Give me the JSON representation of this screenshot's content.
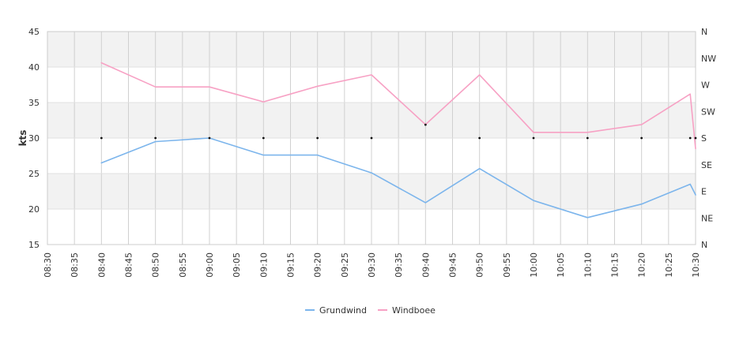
{
  "chart_data": {
    "type": "line",
    "ylabel": "kts",
    "ylim": [
      15,
      45
    ],
    "y_ticks": [
      "15",
      "20",
      "25",
      "30",
      "35",
      "40",
      "45"
    ],
    "right_axis_ticks": [
      "N",
      "NE",
      "E",
      "SE",
      "S",
      "SW",
      "W",
      "NW",
      "N"
    ],
    "x_ticks": [
      "08:30",
      "08:35",
      "08:40",
      "08:45",
      "08:50",
      "08:55",
      "09:00",
      "09:05",
      "09:10",
      "09:15",
      "09:20",
      "09:25",
      "09:30",
      "09:35",
      "09:40",
      "09:45",
      "09:50",
      "09:55",
      "10:00",
      "10:05",
      "10:10",
      "10:15",
      "10:20",
      "10:25",
      "10:30"
    ],
    "x_range": [
      "08:30",
      "10:30"
    ],
    "grid": true,
    "legend_position": "bottom-center",
    "series": [
      {
        "name": "Grundwind",
        "color": "#7cb5ec",
        "points": [
          [
            "08:40",
            26.5
          ],
          [
            "08:50",
            29.5
          ],
          [
            "09:00",
            30.0
          ],
          [
            "09:10",
            27.6
          ],
          [
            "09:20",
            27.6
          ],
          [
            "09:30",
            25.1
          ],
          [
            "09:40",
            20.9
          ],
          [
            "09:50",
            25.7
          ],
          [
            "10:00",
            21.2
          ],
          [
            "10:10",
            18.8
          ],
          [
            "10:20",
            20.7
          ],
          [
            "10:29",
            23.5
          ],
          [
            "10:30",
            22.0
          ]
        ]
      },
      {
        "name": "Windboee",
        "color": "#f7a1c4",
        "points": [
          [
            "08:40",
            40.6
          ],
          [
            "08:50",
            37.2
          ],
          [
            "09:00",
            37.2
          ],
          [
            "09:10",
            35.1
          ],
          [
            "09:20",
            37.3
          ],
          [
            "09:30",
            38.9
          ],
          [
            "09:40",
            31.9
          ],
          [
            "09:50",
            38.9
          ],
          [
            "10:00",
            30.8
          ],
          [
            "10:10",
            30.8
          ],
          [
            "10:20",
            31.9
          ],
          [
            "10:29",
            36.2
          ],
          [
            "10:30",
            28.5
          ]
        ]
      }
    ],
    "direction_markers": [
      {
        "time": "08:40",
        "direction": "S"
      },
      {
        "time": "08:50",
        "direction": "S"
      },
      {
        "time": "09:00",
        "direction": "S"
      },
      {
        "time": "09:10",
        "direction": "S"
      },
      {
        "time": "09:20",
        "direction": "S"
      },
      {
        "time": "09:30",
        "direction": "S"
      },
      {
        "time": "09:40",
        "direction": "SSW"
      },
      {
        "time": "09:50",
        "direction": "S"
      },
      {
        "time": "10:00",
        "direction": "S"
      },
      {
        "time": "10:10",
        "direction": "S"
      },
      {
        "time": "10:20",
        "direction": "S"
      },
      {
        "time": "10:29",
        "direction": "S"
      },
      {
        "time": "10:30",
        "direction": "S"
      }
    ]
  }
}
